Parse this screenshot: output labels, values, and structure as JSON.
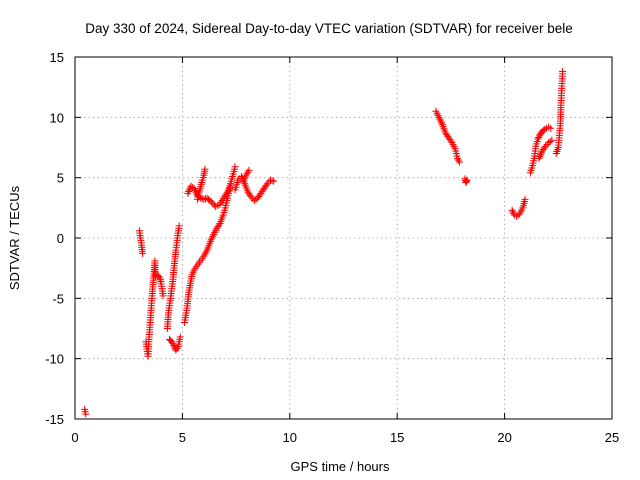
{
  "chart_data": {
    "type": "scatter",
    "title": "Day 330 of 2024, Sidereal Day-to-day VTEC variation (SDTVAR) for receiver bele",
    "xlabel": "GPS time / hours",
    "ylabel": "SDTVAR / TECUs",
    "xlim": [
      0,
      25
    ],
    "ylim": [
      -15,
      15
    ],
    "xticks": [
      0,
      5,
      10,
      15,
      20,
      25
    ],
    "yticks": [
      -15,
      -10,
      -5,
      0,
      5,
      10,
      15
    ],
    "xtick_labels": [
      "0",
      "5",
      "10",
      "15",
      "20",
      "25"
    ],
    "ytick_labels": [
      "-15",
      "-10",
      "-5",
      "0",
      "5",
      "10",
      "15"
    ],
    "grid": true,
    "marker": "+",
    "series": [
      {
        "name": "SDTVAR",
        "color": "#ff0000",
        "segments": [
          [
            [
              0.45,
              -14.2
            ],
            [
              0.5,
              -14.6
            ]
          ],
          [
            [
              3.0,
              0.6
            ],
            [
              3.05,
              0.0
            ],
            [
              3.1,
              -0.6
            ],
            [
              3.15,
              -1.3
            ]
          ],
          [
            [
              3.3,
              -8.6
            ],
            [
              3.35,
              -9.2
            ],
            [
              3.4,
              -9.8
            ],
            [
              3.45,
              -8.2
            ],
            [
              3.5,
              -7.0
            ],
            [
              3.55,
              -5.8
            ],
            [
              3.6,
              -4.6
            ],
            [
              3.65,
              -3.5
            ],
            [
              3.7,
              -2.6
            ],
            [
              3.72,
              -1.9
            ],
            [
              3.75,
              -3.2
            ],
            [
              3.85,
              -3.1
            ],
            [
              3.95,
              -3.3
            ],
            [
              4.0,
              -3.6
            ],
            [
              4.05,
              -4.2
            ],
            [
              4.1,
              -4.8
            ]
          ],
          [
            [
              4.3,
              -7.5
            ],
            [
              4.35,
              -6.2
            ],
            [
              4.45,
              -5.0
            ],
            [
              4.55,
              -3.6
            ],
            [
              4.62,
              -2.3
            ],
            [
              4.7,
              -1.0
            ],
            [
              4.78,
              0.2
            ],
            [
              4.85,
              1.0
            ]
          ],
          [
            [
              4.4,
              -8.4
            ],
            [
              4.5,
              -8.6
            ],
            [
              4.6,
              -8.9
            ],
            [
              4.7,
              -9.3
            ],
            [
              4.8,
              -9.0
            ],
            [
              4.9,
              -8.2
            ]
          ],
          [
            [
              5.1,
              -7.0
            ],
            [
              5.2,
              -6.0
            ],
            [
              5.3,
              -4.5
            ],
            [
              5.45,
              -3.0
            ],
            [
              5.6,
              -2.5
            ],
            [
              5.8,
              -2.0
            ],
            [
              6.0,
              -1.5
            ],
            [
              6.15,
              -1.0
            ],
            [
              6.3,
              -0.3
            ],
            [
              6.45,
              0.3
            ],
            [
              6.6,
              0.8
            ],
            [
              6.75,
              1.2
            ],
            [
              6.9,
              1.9
            ],
            [
              7.0,
              2.5
            ],
            [
              7.1,
              3.3
            ],
            [
              7.2,
              4.1
            ],
            [
              7.3,
              4.9
            ],
            [
              7.4,
              5.5
            ],
            [
              7.45,
              5.9
            ]
          ],
          [
            [
              5.25,
              3.7
            ],
            [
              5.4,
              4.3
            ],
            [
              5.55,
              4.1
            ],
            [
              5.7,
              3.5
            ],
            [
              5.85,
              3.3
            ],
            [
              6.0,
              3.2
            ],
            [
              6.15,
              3.3
            ],
            [
              6.35,
              3.0
            ],
            [
              6.55,
              2.6
            ],
            [
              6.75,
              2.8
            ],
            [
              6.95,
              3.4
            ],
            [
              7.1,
              3.8
            ],
            [
              7.25,
              4.5
            ]
          ],
          [
            [
              5.7,
              3.2
            ],
            [
              5.8,
              3.9
            ],
            [
              5.9,
              4.6
            ],
            [
              6.0,
              5.2
            ],
            [
              6.05,
              5.7
            ]
          ],
          [
            [
              7.45,
              4.0
            ],
            [
              7.6,
              4.8
            ],
            [
              7.75,
              5.1
            ],
            [
              7.9,
              4.5
            ],
            [
              8.05,
              3.8
            ],
            [
              8.2,
              3.4
            ],
            [
              8.35,
              3.1
            ],
            [
              8.5,
              3.3
            ],
            [
              8.65,
              3.7
            ],
            [
              8.8,
              4.1
            ],
            [
              8.95,
              4.5
            ],
            [
              9.1,
              4.8
            ],
            [
              9.25,
              4.7
            ]
          ],
          [
            [
              7.85,
              4.8
            ],
            [
              8.0,
              5.3
            ],
            [
              8.1,
              5.6
            ]
          ],
          [
            [
              16.8,
              10.5
            ],
            [
              16.95,
              10.0
            ],
            [
              17.1,
              9.4
            ],
            [
              17.25,
              8.7
            ],
            [
              17.4,
              8.3
            ],
            [
              17.55,
              7.9
            ],
            [
              17.7,
              7.4
            ],
            [
              17.8,
              6.6
            ],
            [
              17.9,
              6.3
            ]
          ],
          [
            [
              18.15,
              4.9
            ],
            [
              18.2,
              4.6
            ],
            [
              18.25,
              4.8
            ]
          ],
          [
            [
              20.35,
              2.3
            ],
            [
              20.45,
              1.9
            ],
            [
              20.55,
              1.8
            ],
            [
              20.7,
              2.0
            ],
            [
              20.85,
              2.5
            ],
            [
              20.95,
              3.2
            ]
          ],
          [
            [
              21.2,
              5.4
            ],
            [
              21.3,
              6.0
            ],
            [
              21.4,
              6.8
            ],
            [
              21.45,
              7.6
            ],
            [
              21.55,
              8.2
            ],
            [
              21.65,
              8.6
            ],
            [
              21.75,
              8.8
            ],
            [
              21.85,
              9.0
            ],
            [
              21.95,
              9.1
            ],
            [
              22.05,
              9.2
            ],
            [
              22.15,
              9.1
            ]
          ],
          [
            [
              21.6,
              6.6
            ],
            [
              21.75,
              7.2
            ],
            [
              21.9,
              7.6
            ],
            [
              22.05,
              7.9
            ],
            [
              22.2,
              8.1
            ]
          ],
          [
            [
              22.4,
              7.0
            ],
            [
              22.5,
              7.5
            ],
            [
              22.55,
              8.5
            ],
            [
              22.6,
              9.5
            ],
            [
              22.62,
              10.8
            ],
            [
              22.65,
              12.0
            ],
            [
              22.68,
              13.0
            ],
            [
              22.7,
              13.8
            ]
          ]
        ]
      }
    ]
  }
}
